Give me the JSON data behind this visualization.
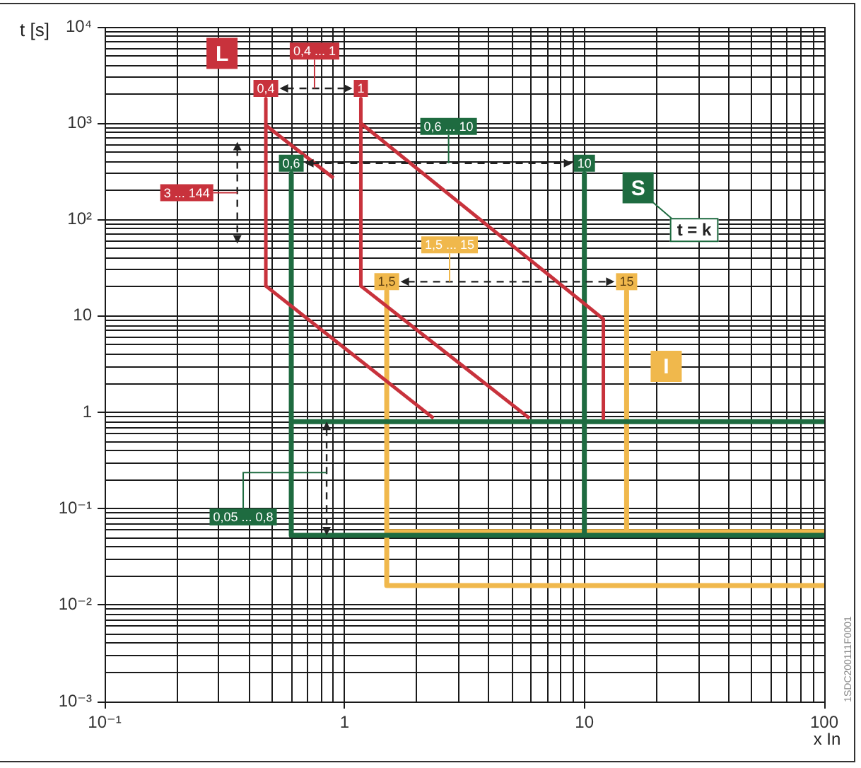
{
  "chart_data": {
    "type": "line",
    "xlabel": "x In",
    "ylabel": "t [s]",
    "log": "xy",
    "grid": true,
    "marker": "none",
    "xlim": [
      0.1,
      100
    ],
    "ylim": [
      0.001,
      10000
    ],
    "xticks": [
      {
        "value": 0.1,
        "label": "10⁻¹"
      },
      {
        "value": 0.2,
        "label": null
      },
      {
        "value": 0.3,
        "label": null
      },
      {
        "value": 0.4,
        "label": null
      },
      {
        "value": 0.5,
        "label": null
      },
      {
        "value": 0.6,
        "label": null
      },
      {
        "value": 0.7,
        "label": null
      },
      {
        "value": 0.8,
        "label": null
      },
      {
        "value": 0.9,
        "label": null
      },
      1,
      {
        "value": 2,
        "label": null
      },
      {
        "value": 3,
        "label": null
      },
      {
        "value": 4,
        "label": null
      },
      {
        "value": 5,
        "label": null
      },
      {
        "value": 6,
        "label": null
      },
      {
        "value": 7,
        "label": null
      },
      {
        "value": 8,
        "label": null
      },
      {
        "value": 9,
        "label": null
      },
      10,
      {
        "value": 20,
        "label": null
      },
      {
        "value": 30,
        "label": null
      },
      {
        "value": 40,
        "label": null
      },
      {
        "value": 50,
        "label": null
      },
      {
        "value": 60,
        "label": null
      },
      {
        "value": 70,
        "label": null
      },
      {
        "value": 80,
        "label": null
      },
      {
        "value": 90,
        "label": null
      },
      100
    ],
    "yticks": [
      {
        "value": 0.001,
        "label": "10⁻³"
      },
      {
        "value": 0.002,
        "label": null
      },
      {
        "value": 0.003,
        "label": null
      },
      {
        "value": 0.004,
        "label": null
      },
      {
        "value": 0.005,
        "label": null
      },
      {
        "value": 0.006,
        "label": null
      },
      {
        "value": 0.007,
        "label": null
      },
      {
        "value": 0.008,
        "label": null
      },
      {
        "value": 0.009,
        "label": null
      },
      {
        "value": 0.01,
        "label": "10⁻²"
      },
      {
        "value": 0.02,
        "label": null
      },
      {
        "value": 0.03,
        "label": null
      },
      {
        "value": 0.04,
        "label": null
      },
      {
        "value": 0.05,
        "label": null
      },
      {
        "value": 0.06,
        "label": null
      },
      {
        "value": 0.07,
        "label": null
      },
      {
        "value": 0.08,
        "label": null
      },
      {
        "value": 0.09,
        "label": null
      },
      {
        "value": 0.1,
        "label": "10⁻¹"
      },
      {
        "value": 0.2,
        "label": null
      },
      {
        "value": 0.3,
        "label": null
      },
      {
        "value": 0.4,
        "label": null
      },
      {
        "value": 0.5,
        "label": null
      },
      {
        "value": 0.6,
        "label": null
      },
      {
        "value": 0.7,
        "label": null
      },
      {
        "value": 0.8,
        "label": null
      },
      {
        "value": 0.9,
        "label": null
      },
      1,
      {
        "value": 2,
        "label": null
      },
      {
        "value": 3,
        "label": null
      },
      {
        "value": 4,
        "label": null
      },
      {
        "value": 5,
        "label": null
      },
      {
        "value": 6,
        "label": null
      },
      {
        "value": 7,
        "label": null
      },
      {
        "value": 8,
        "label": null
      },
      {
        "value": 9,
        "label": null
      },
      10,
      {
        "value": 20,
        "label": null
      },
      {
        "value": 30,
        "label": null
      },
      {
        "value": 40,
        "label": null
      },
      {
        "value": 50,
        "label": null
      },
      {
        "value": 60,
        "label": null
      },
      {
        "value": 70,
        "label": null
      },
      {
        "value": 80,
        "label": null
      },
      {
        "value": 90,
        "label": null
      },
      {
        "value": 100,
        "label": "10²"
      },
      {
        "value": 200,
        "label": null
      },
      {
        "value": 300,
        "label": null
      },
      {
        "value": 400,
        "label": null
      },
      {
        "value": 500,
        "label": null
      },
      {
        "value": 600,
        "label": null
      },
      {
        "value": 700,
        "label": null
      },
      {
        "value": 800,
        "label": null
      },
      {
        "value": 900,
        "label": null
      },
      {
        "value": 1000,
        "label": "10³"
      },
      {
        "value": 2000,
        "label": null
      },
      {
        "value": 3000,
        "label": null
      },
      {
        "value": 4000,
        "label": null
      },
      {
        "value": 5000,
        "label": null
      },
      {
        "value": 6000,
        "label": null
      },
      {
        "value": 7000,
        "label": null
      },
      {
        "value": 8000,
        "label": null
      },
      {
        "value": 9000,
        "label": null
      },
      {
        "value": 10000,
        "label": "10⁴"
      }
    ],
    "series": [
      {
        "name": "L",
        "color": "#c8323c",
        "x": [
          0.47,
          0.47,
          2.35,
          null,
          0.47,
          0.9,
          null,
          1.17,
          1.17,
          5.9,
          null,
          1.17,
          12,
          12
        ],
        "values": [
          1800,
          20.5,
          0.87,
          null,
          950,
          270,
          null,
          1800,
          20.5,
          0.87,
          null,
          1000,
          9.3,
          0.87
        ]
      },
      {
        "name": "S",
        "color": "#1e6b40",
        "x": [
          0.6,
          0.6,
          100,
          null,
          0.6,
          100,
          null,
          10,
          10
        ],
        "values": [
          300,
          0.053,
          0.053,
          null,
          0.8,
          0.8,
          null,
          300,
          0.053
        ]
      },
      {
        "name": "I",
        "color": "#f0b84c",
        "x": [
          1.5,
          1.5,
          100,
          null,
          1.5,
          100,
          null,
          15,
          15
        ],
        "values": [
          18,
          0.016,
          0.016,
          null,
          0.058,
          0.058,
          null,
          18,
          0.058
        ]
      }
    ],
    "annotations": [
      {
        "text": "0,4 ... 1",
        "x": 0.75,
        "y": 5600
      },
      {
        "text": "0,4",
        "x": 0.47,
        "y": 2300
      },
      {
        "text": "1",
        "x": 1.17,
        "y": 2300
      },
      {
        "text": "3 ... 144",
        "x": 0.22,
        "y": 190
      },
      "0,6 ... 10",
      {
        "text": "0,6",
        "x": 0.6,
        "y": 385
      },
      {
        "text": "10",
        "x": 10,
        "y": 385
      },
      "1,5 ... 15",
      {
        "text": "1,5",
        "x": 1.5,
        "y": 22.7
      },
      {
        "text": "15",
        "x": 15,
        "y": 22.7
      },
      {
        "text": "t = k",
        "x": 28.7,
        "y": 78
      },
      "0,05 ... 0,8",
      "1SDC200111F0001"
    ]
  }
}
